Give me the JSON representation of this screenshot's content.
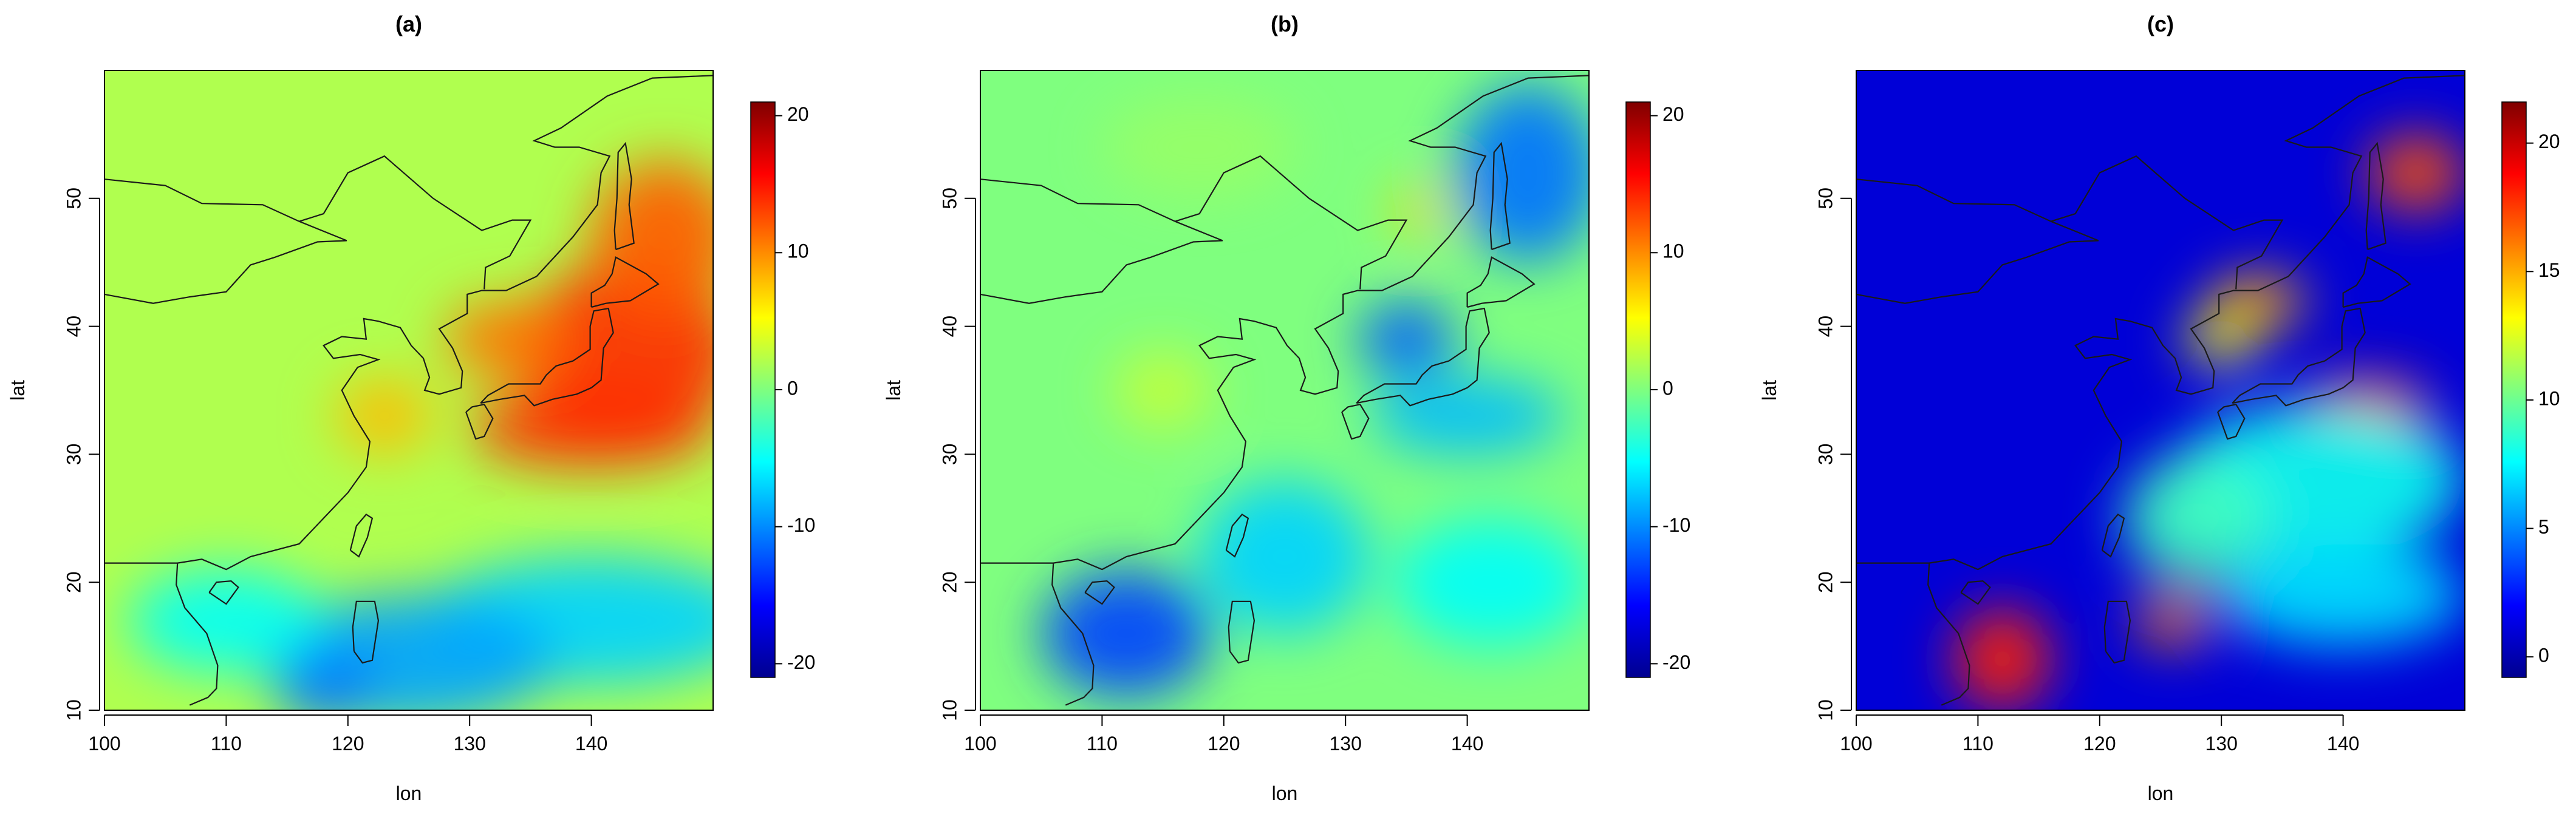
{
  "chart_data": [
    {
      "type": "heatmap",
      "title": "(a)",
      "xlabel": "lon",
      "ylabel": "lat",
      "x_ticks": [
        100,
        110,
        120,
        130,
        140
      ],
      "y_ticks": [
        10,
        20,
        30,
        40,
        50
      ],
      "xlim": [
        100,
        150
      ],
      "ylim": [
        10,
        60
      ],
      "colorbar": {
        "min": -21,
        "max": 21,
        "ticks": [
          -20,
          -10,
          0,
          10,
          20
        ]
      },
      "colormap": [
        "#00008f",
        "#0000ff",
        "#007fff",
        "#00ffff",
        "#7fff7f",
        "#ffff00",
        "#ff7f00",
        "#ff0000",
        "#800000"
      ],
      "background_value": 2,
      "blobs": [
        {
          "lon": 143,
          "lat": 38,
          "rx": 9,
          "ry": 7,
          "value": 14
        },
        {
          "lon": 146,
          "lat": 47,
          "rx": 6,
          "ry": 6,
          "value": 12
        },
        {
          "lon": 140,
          "lat": 32,
          "rx": 10,
          "ry": 3,
          "value": 14
        },
        {
          "lon": 133,
          "lat": 39,
          "rx": 5,
          "ry": 3,
          "value": 11
        },
        {
          "lon": 123,
          "lat": 33,
          "rx": 4,
          "ry": 3,
          "value": 8
        },
        {
          "lon": 140,
          "lat": 17,
          "rx": 14,
          "ry": 5,
          "value": -7
        },
        {
          "lon": 125,
          "lat": 14,
          "rx": 12,
          "ry": 5,
          "value": -9
        },
        {
          "lon": 110,
          "lat": 17,
          "rx": 8,
          "ry": 4,
          "value": -5
        },
        {
          "lon": 118,
          "lat": 12,
          "rx": 4,
          "ry": 3,
          "value": -11
        }
      ]
    },
    {
      "type": "heatmap",
      "title": "(b)",
      "xlabel": "lon",
      "ylabel": "lat",
      "x_ticks": [
        100,
        110,
        120,
        130,
        140
      ],
      "y_ticks": [
        10,
        20,
        30,
        40,
        50
      ],
      "xlim": [
        100,
        150
      ],
      "ylim": [
        10,
        60
      ],
      "colorbar": {
        "min": -21,
        "max": 21,
        "ticks": [
          -20,
          -10,
          0,
          10,
          20
        ]
      },
      "colormap": [
        "#00008f",
        "#0000ff",
        "#007fff",
        "#00ffff",
        "#7fff7f",
        "#ffff00",
        "#ff7f00",
        "#ff0000",
        "#800000"
      ],
      "background_value": 0,
      "blobs": [
        {
          "lon": 145,
          "lat": 52,
          "rx": 6,
          "ry": 7,
          "value": -11
        },
        {
          "lon": 135,
          "lat": 39,
          "rx": 4,
          "ry": 3,
          "value": -12
        },
        {
          "lon": 140,
          "lat": 33,
          "rx": 8,
          "ry": 3,
          "value": -8
        },
        {
          "lon": 112,
          "lat": 16,
          "rx": 7,
          "ry": 5,
          "value": -13
        },
        {
          "lon": 125,
          "lat": 22,
          "rx": 7,
          "ry": 6,
          "value": -7
        },
        {
          "lon": 142,
          "lat": 20,
          "rx": 8,
          "ry": 5,
          "value": -5
        },
        {
          "lon": 136,
          "lat": 49,
          "rx": 2,
          "ry": 2,
          "value": 7
        },
        {
          "lon": 115,
          "lat": 35,
          "rx": 4,
          "ry": 3,
          "value": 3
        },
        {
          "lon": 118,
          "lat": 54,
          "rx": 8,
          "ry": 4,
          "value": 1
        }
      ]
    },
    {
      "type": "heatmap",
      "title": "(c)",
      "xlabel": "lon",
      "ylabel": "lat",
      "x_ticks": [
        100,
        110,
        120,
        130,
        140
      ],
      "y_ticks": [
        10,
        20,
        30,
        40,
        50
      ],
      "xlim": [
        100,
        150
      ],
      "ylim": [
        10,
        60
      ],
      "colorbar": {
        "min": -0.8,
        "max": 21.6,
        "ticks": [
          0,
          5,
          10,
          15,
          20
        ]
      },
      "colormap": [
        "#00008f",
        "#0000ff",
        "#007fff",
        "#00ffff",
        "#7fff7f",
        "#ffff00",
        "#ff7f00",
        "#ff0000",
        "#800000"
      ],
      "background_value": 1,
      "blobs": [
        {
          "lon": 112,
          "lat": 14,
          "rx": 4,
          "ry": 4,
          "value": 18
        },
        {
          "lon": 126,
          "lat": 17,
          "rx": 3,
          "ry": 2,
          "value": 16
        },
        {
          "lon": 142,
          "lat": 34,
          "rx": 5,
          "ry": 2,
          "value": 17
        },
        {
          "lon": 133,
          "lat": 42,
          "rx": 4,
          "ry": 2,
          "value": 15
        },
        {
          "lon": 146,
          "lat": 52,
          "rx": 4,
          "ry": 3,
          "value": 17
        },
        {
          "lon": 130,
          "lat": 39,
          "rx": 3,
          "ry": 2,
          "value": 13
        },
        {
          "lon": 138,
          "lat": 28,
          "rx": 12,
          "ry": 6,
          "value": 8
        },
        {
          "lon": 128,
          "lat": 25,
          "rx": 6,
          "ry": 5,
          "value": 9
        },
        {
          "lon": 140,
          "lat": 19,
          "rx": 10,
          "ry": 4,
          "value": 7
        }
      ]
    }
  ]
}
